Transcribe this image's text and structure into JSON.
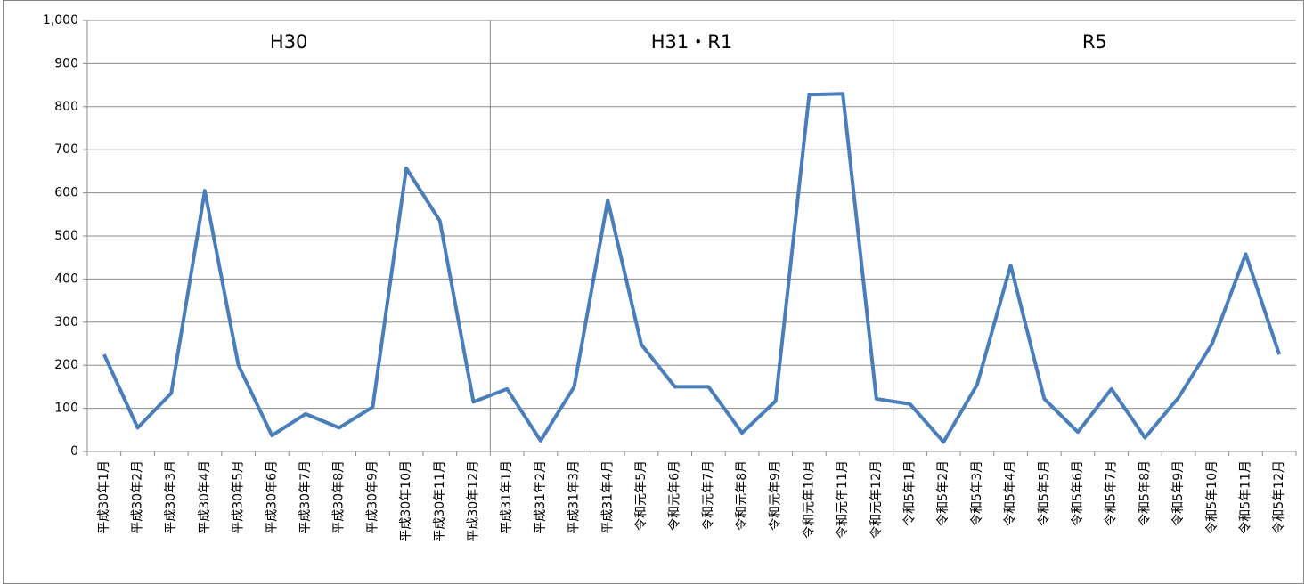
{
  "chart_data": {
    "type": "line",
    "annotations": [
      "H30",
      "H31・R1",
      "R5"
    ],
    "categories": [
      "平成30年1月",
      "平成30年2月",
      "平成30年3月",
      "平成30年4月",
      "平成30年5月",
      "平成30年6月",
      "平成30年7月",
      "平成30年8月",
      "平成30年9月",
      "平成30年10月",
      "平成30年11月",
      "平成30年12月",
      "平成31年1月",
      "平成31年2月",
      "平成31年3月",
      "平成31年4月",
      "令和元年5月",
      "令和元年6月",
      "令和元年7月",
      "令和元年8月",
      "令和元年9月",
      "令和元年10月",
      "令和元年11月",
      "令和元年12月",
      "令和5年1月",
      "令和5年2月",
      "令和5年3月",
      "令和5年4月",
      "令和5年5月",
      "令和5年6月",
      "令和5年7月",
      "令和5年8月",
      "令和5年9月",
      "令和5年10月",
      "令和5年11月",
      "令和5年12月"
    ],
    "series": [
      {
        "color": "#4a7ebb",
        "values": [
          225,
          55,
          135,
          605,
          200,
          37,
          87,
          55,
          103,
          657,
          535,
          115,
          145,
          25,
          150,
          583,
          248,
          150,
          150,
          43,
          117,
          828,
          830,
          122,
          110,
          22,
          155,
          432,
          122,
          45,
          145,
          32,
          125,
          250,
          458,
          225
        ]
      }
    ],
    "ylim": [
      0,
      1000
    ],
    "yticks": [
      0,
      100,
      200,
      300,
      400,
      500,
      600,
      700,
      800,
      900,
      {
        "value": 1000,
        "label": "1,000"
      }
    ],
    "grid": true
  }
}
